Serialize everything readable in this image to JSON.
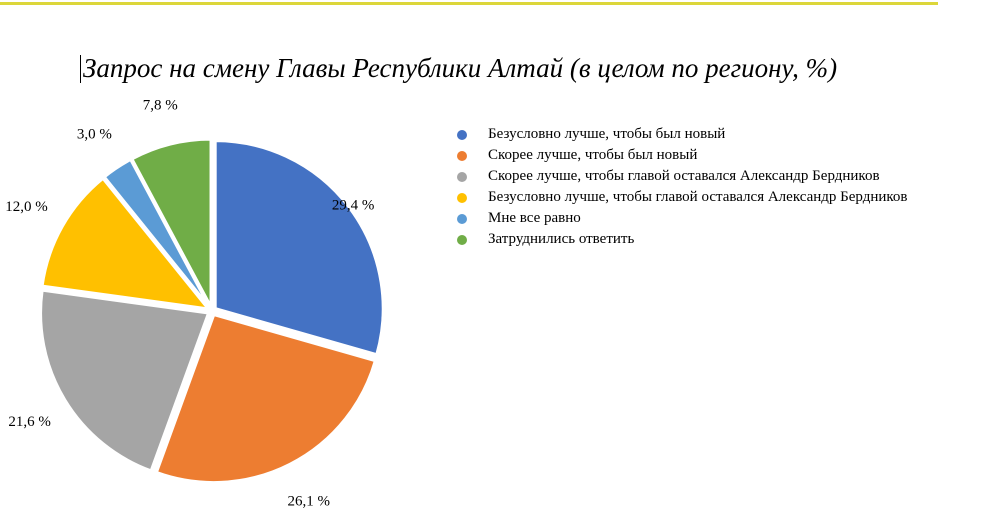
{
  "colors": {
    "top_rule": "#dcd63a"
  },
  "chart_data": {
    "type": "pie",
    "title": "Запрос на смену Главы Республики Алтай (в целом по региону, %)",
    "unit": "%",
    "legend_position": "right",
    "slices": [
      {
        "label": "Безусловно лучше, чтобы был новый",
        "value": 29.4,
        "display": "29,4 %",
        "color": "#4472c4"
      },
      {
        "label": "Скорее лучше, чтобы был новый",
        "value": 26.1,
        "display": "26,1 %",
        "color": "#ed7d31"
      },
      {
        "label": "Скорее лучше, чтобы главой оставался Александр Бердников",
        "value": 21.6,
        "display": "21,6 %",
        "color": "#a5a5a5"
      },
      {
        "label": "Безусловно лучше, чтобы главой оставался Александр Бердников",
        "value": 12.0,
        "display": "12,0 %",
        "color": "#ffc000"
      },
      {
        "label": "Мне все равно",
        "value": 3.0,
        "display": "3,0 %",
        "color": "#5b9bd5"
      },
      {
        "label": "Затруднились ответить",
        "value": 7.8,
        "display": "7,8 %",
        "color": "#70ad47"
      }
    ]
  }
}
